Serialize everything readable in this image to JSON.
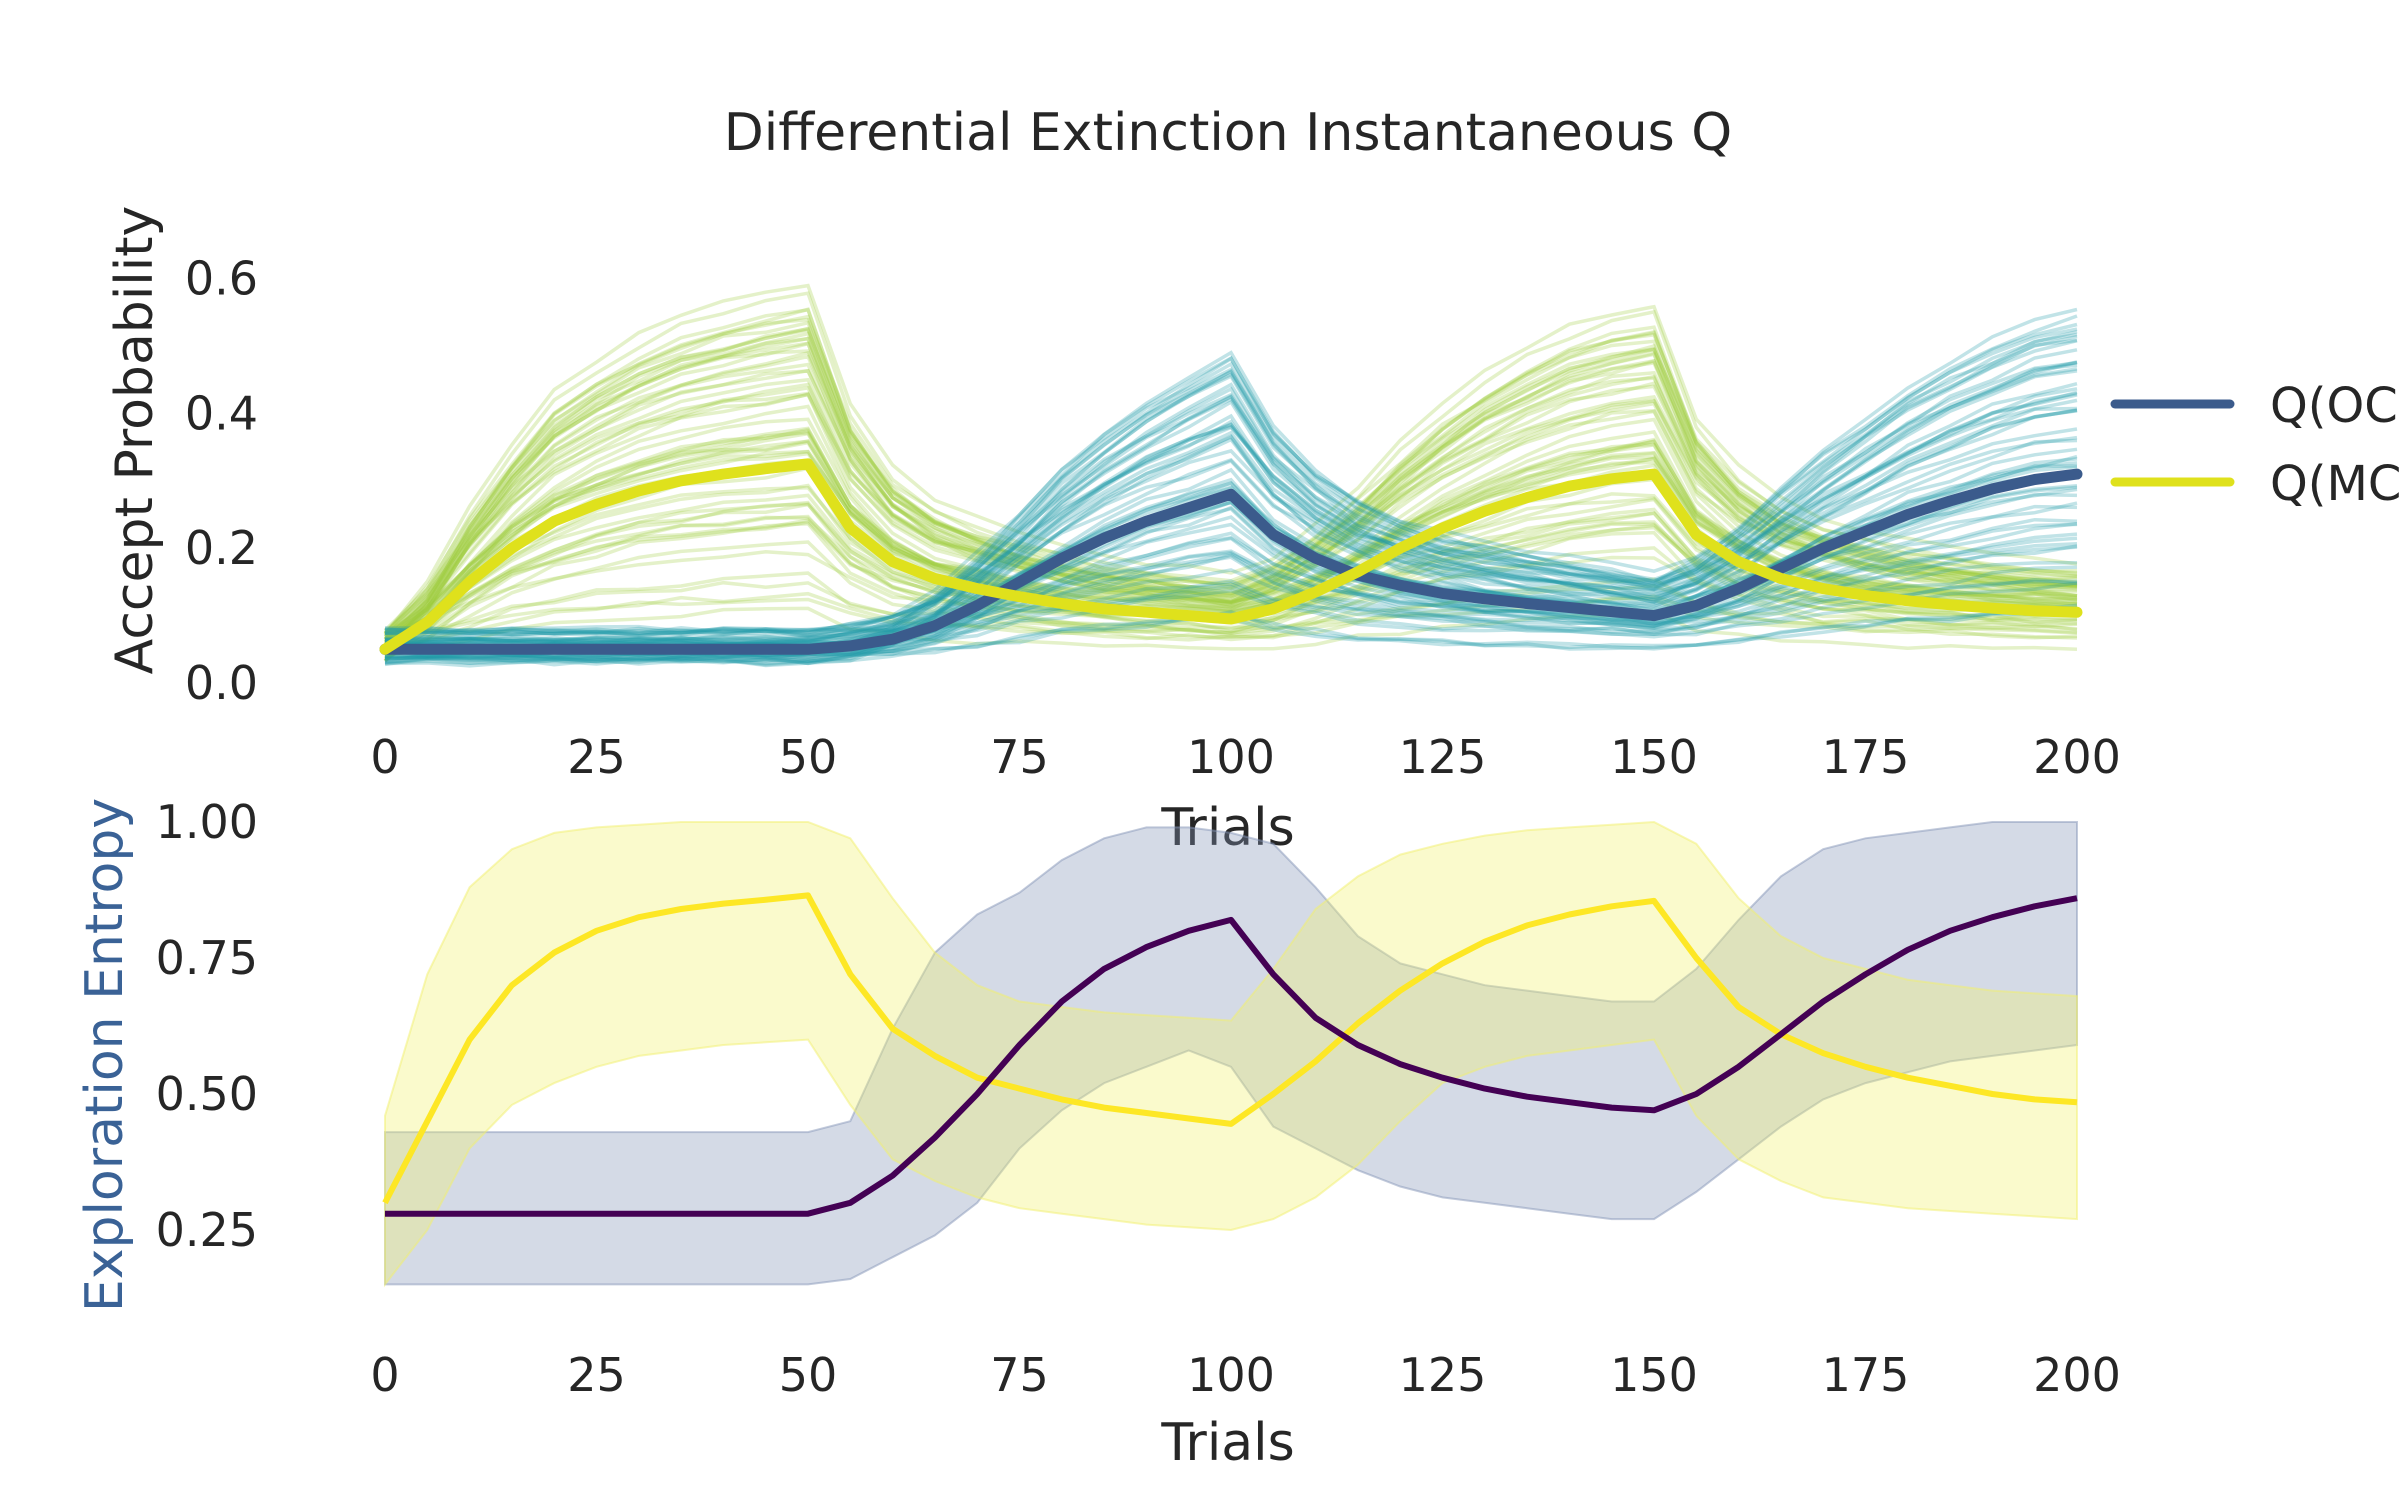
{
  "figure": {
    "title": "Differential Extinction Instantaneous Q"
  },
  "chart_data": [
    {
      "type": "line",
      "panel": "top",
      "xlabel": "Trials",
      "ylabel": "Accept Probability",
      "xlim": [
        0,
        200
      ],
      "ylim": [
        0,
        0.75
      ],
      "xticks": [
        "0",
        "25",
        "50",
        "75",
        "100",
        "125",
        "150",
        "175",
        "200"
      ],
      "yticks": [
        "0.0",
        "0.2",
        "0.4",
        "0.6"
      ],
      "grid": false,
      "legend": {
        "position": "right, outside (clipped)",
        "entries": [
          {
            "label": "Q(OC",
            "color": "#3b5b8c"
          },
          {
            "label": "Q(MC",
            "color": "#dfe11c"
          }
        ]
      },
      "x": [
        0,
        5,
        10,
        15,
        20,
        25,
        30,
        35,
        40,
        45,
        50,
        55,
        60,
        65,
        70,
        75,
        80,
        85,
        90,
        95,
        100,
        105,
        110,
        115,
        120,
        125,
        130,
        135,
        140,
        145,
        150,
        155,
        160,
        165,
        170,
        175,
        180,
        185,
        190,
        195,
        200
      ],
      "series": [
        {
          "color": "#3b5b8c",
          "values": [
            0.05,
            0.05,
            0.05,
            0.05,
            0.05,
            0.05,
            0.05,
            0.05,
            0.05,
            0.05,
            0.05,
            0.055,
            0.065,
            0.085,
            0.115,
            0.15,
            0.185,
            0.215,
            0.24,
            0.26,
            0.28,
            0.22,
            0.185,
            0.16,
            0.145,
            0.133,
            0.125,
            0.118,
            0.112,
            0.106,
            0.1,
            0.115,
            0.14,
            0.17,
            0.2,
            0.225,
            0.25,
            0.27,
            0.288,
            0.302,
            0.31
          ]
        },
        {
          "color": "#dfe11c",
          "values": [
            0.05,
            0.09,
            0.15,
            0.2,
            0.24,
            0.265,
            0.285,
            0.3,
            0.31,
            0.318,
            0.325,
            0.23,
            0.18,
            0.155,
            0.14,
            0.128,
            0.118,
            0.11,
            0.105,
            0.1,
            0.095,
            0.11,
            0.135,
            0.165,
            0.2,
            0.23,
            0.255,
            0.275,
            0.292,
            0.303,
            0.31,
            0.22,
            0.18,
            0.155,
            0.14,
            0.13,
            0.122,
            0.116,
            0.111,
            0.107,
            0.105
          ]
        }
      ],
      "individual_traces": {
        "count_per_group": 60,
        "groups": [
          "#1f9aa8",
          "#9ecb3c"
        ],
        "alpha": 0.28
      }
    },
    {
      "type": "area",
      "panel": "bottom",
      "xlabel": "Trials",
      "ylabel": "Exploration Entropy",
      "ylabel_color": "#3a6296",
      "xlim": [
        0,
        200
      ],
      "ylim": [
        0.05,
        1.02
      ],
      "xticks": [
        "0",
        "25",
        "50",
        "75",
        "100",
        "125",
        "150",
        "175",
        "200"
      ],
      "yticks": [
        "0.25",
        "0.50",
        "0.75",
        "1.00"
      ],
      "grid": false,
      "x": [
        0,
        5,
        10,
        15,
        20,
        25,
        30,
        35,
        40,
        45,
        50,
        55,
        60,
        65,
        70,
        75,
        80,
        85,
        90,
        95,
        100,
        105,
        110,
        115,
        120,
        125,
        130,
        135,
        140,
        145,
        150,
        155,
        160,
        165,
        170,
        175,
        180,
        185,
        190,
        195,
        200
      ],
      "series": [
        {
          "color": "#440154",
          "band_color": "#8596b8",
          "values": [
            0.28,
            0.28,
            0.28,
            0.28,
            0.28,
            0.28,
            0.28,
            0.28,
            0.28,
            0.28,
            0.28,
            0.3,
            0.35,
            0.42,
            0.5,
            0.59,
            0.67,
            0.73,
            0.77,
            0.8,
            0.82,
            0.72,
            0.64,
            0.59,
            0.555,
            0.53,
            0.51,
            0.495,
            0.485,
            0.475,
            0.47,
            0.5,
            0.55,
            0.61,
            0.67,
            0.72,
            0.765,
            0.8,
            0.825,
            0.845,
            0.86
          ],
          "lower": [
            0.15,
            0.15,
            0.15,
            0.15,
            0.15,
            0.15,
            0.15,
            0.15,
            0.15,
            0.15,
            0.15,
            0.16,
            0.2,
            0.24,
            0.3,
            0.4,
            0.47,
            0.52,
            0.55,
            0.58,
            0.55,
            0.44,
            0.4,
            0.36,
            0.33,
            0.31,
            0.3,
            0.29,
            0.28,
            0.27,
            0.27,
            0.32,
            0.38,
            0.44,
            0.49,
            0.52,
            0.54,
            0.56,
            0.57,
            0.58,
            0.59
          ],
          "upper": [
            0.43,
            0.43,
            0.43,
            0.43,
            0.43,
            0.43,
            0.43,
            0.43,
            0.43,
            0.43,
            0.43,
            0.45,
            0.62,
            0.76,
            0.83,
            0.87,
            0.93,
            0.97,
            0.99,
            0.99,
            0.98,
            0.96,
            0.88,
            0.79,
            0.74,
            0.72,
            0.7,
            0.69,
            0.68,
            0.67,
            0.67,
            0.73,
            0.82,
            0.9,
            0.95,
            0.97,
            0.98,
            0.99,
            1.0,
            1.0,
            1.0
          ]
        },
        {
          "color": "#fde725",
          "band_color": "#f1f06e",
          "values": [
            0.3,
            0.45,
            0.6,
            0.7,
            0.76,
            0.8,
            0.825,
            0.84,
            0.85,
            0.857,
            0.865,
            0.72,
            0.62,
            0.57,
            0.53,
            0.51,
            0.49,
            0.475,
            0.465,
            0.455,
            0.445,
            0.5,
            0.56,
            0.63,
            0.69,
            0.74,
            0.78,
            0.81,
            0.83,
            0.845,
            0.855,
            0.75,
            0.66,
            0.61,
            0.575,
            0.55,
            0.53,
            0.515,
            0.5,
            0.49,
            0.485
          ],
          "lower": [
            0.15,
            0.25,
            0.4,
            0.48,
            0.52,
            0.55,
            0.57,
            0.58,
            0.59,
            0.595,
            0.6,
            0.48,
            0.38,
            0.34,
            0.31,
            0.29,
            0.28,
            0.27,
            0.26,
            0.255,
            0.25,
            0.27,
            0.31,
            0.37,
            0.45,
            0.52,
            0.55,
            0.57,
            0.58,
            0.59,
            0.6,
            0.46,
            0.38,
            0.34,
            0.31,
            0.3,
            0.29,
            0.285,
            0.28,
            0.275,
            0.27
          ],
          "upper": [
            0.46,
            0.72,
            0.88,
            0.95,
            0.98,
            0.99,
            0.995,
            1.0,
            1.0,
            1.0,
            1.0,
            0.97,
            0.86,
            0.76,
            0.7,
            0.67,
            0.66,
            0.65,
            0.645,
            0.64,
            0.635,
            0.73,
            0.84,
            0.9,
            0.94,
            0.96,
            0.975,
            0.985,
            0.99,
            0.995,
            1.0,
            0.96,
            0.86,
            0.79,
            0.75,
            0.73,
            0.71,
            0.7,
            0.69,
            0.685,
            0.68
          ]
        }
      ]
    }
  ]
}
